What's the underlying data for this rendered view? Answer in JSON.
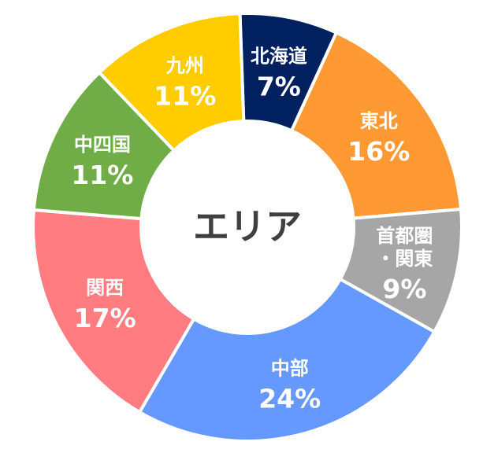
{
  "chart_data": {
    "type": "pie",
    "variant": "donut",
    "center_label": "エリア",
    "slices": [
      {
        "label_lines": [
          "北海道"
        ],
        "value": 7,
        "value_label": "7%",
        "color": "#002060"
      },
      {
        "label_lines": [
          "東北"
        ],
        "value": 16,
        "value_label": "16%",
        "color": "#FF9933"
      },
      {
        "label_lines": [
          "首都圏",
          "・関東"
        ],
        "value": 9,
        "value_label": "9%",
        "color": "#A6A6A6"
      },
      {
        "label_lines": [
          "中部"
        ],
        "value": 24,
        "value_label": "24%",
        "color": "#6699FF"
      },
      {
        "label_lines": [
          "関西"
        ],
        "value": 17,
        "value_label": "17%",
        "color": "#FF7C80"
      },
      {
        "label_lines": [
          "中四国"
        ],
        "value": 11,
        "value_label": "11%",
        "color": "#70AD47"
      },
      {
        "label_lines": [
          "九州"
        ],
        "value": 11,
        "value_label": "11%",
        "color": "#FFCC00"
      }
    ]
  }
}
